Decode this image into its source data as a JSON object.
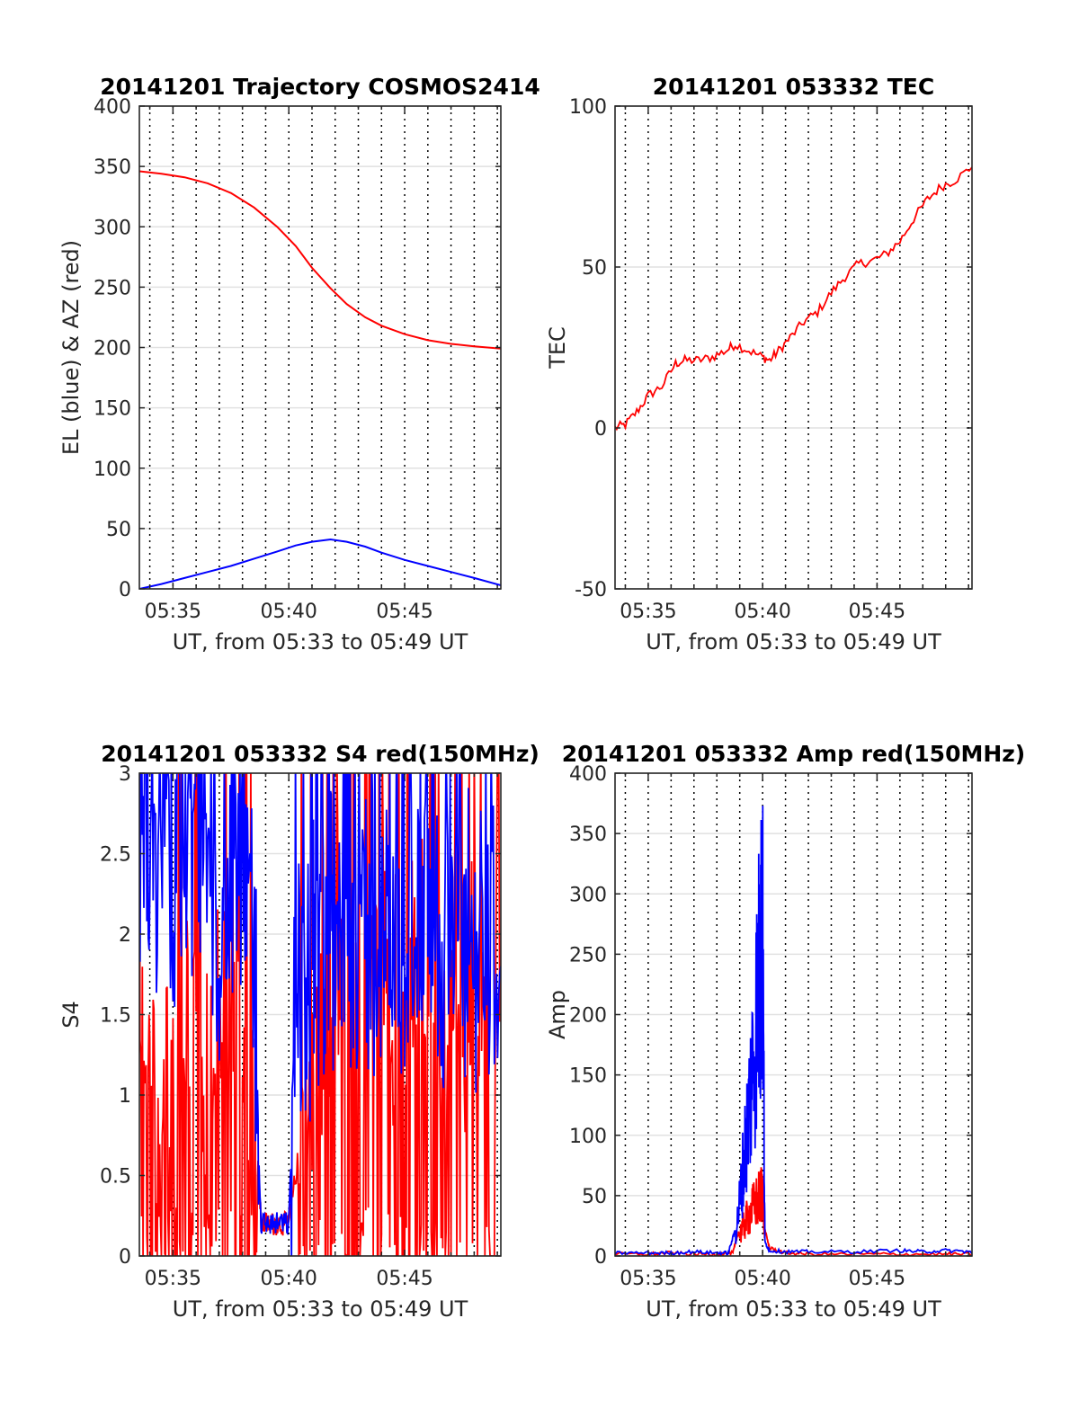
{
  "colors": {
    "red": "#ff0000",
    "blue": "#0000ff",
    "grid": "#e1e1e1",
    "axis": "#262626"
  },
  "chart_data": [
    {
      "type": "line",
      "title": "20141201 Trajectory COSMOS2414",
      "xlabel": "UT, from 05:33 to 05:49 UT",
      "ylabel": "EL (blue) & AZ (red)",
      "xlim": [
        33.55,
        49.15
      ],
      "ylim": [
        0,
        400
      ],
      "xtick_labels": [
        "05:35",
        "05:40",
        "05:45"
      ],
      "xticks": [
        35,
        40,
        45
      ],
      "yticks": [
        0,
        50,
        100,
        150,
        200,
        250,
        300,
        350,
        400
      ],
      "ytick_labels": [
        "0",
        "50",
        "100",
        "150",
        "200",
        "250",
        "300",
        "350",
        "400"
      ],
      "grid": true,
      "series": [
        {
          "color": "red",
          "x": [
            33.55,
            34.5,
            35.5,
            36.5,
            37.5,
            38.5,
            39.5,
            40.3,
            41.0,
            41.8,
            42.5,
            43.3,
            44.0,
            45.0,
            46.0,
            47.0,
            48.0,
            49.15
          ],
          "values": [
            346,
            344,
            341,
            336,
            328,
            316,
            300,
            284,
            266,
            249,
            236,
            225,
            218,
            211,
            206,
            203,
            201,
            199
          ]
        },
        {
          "color": "blue",
          "x": [
            33.55,
            34.5,
            35.5,
            36.5,
            37.5,
            38.5,
            39.5,
            40.3,
            41.0,
            41.8,
            42.5,
            43.3,
            44.0,
            45.0,
            46.0,
            47.0,
            48.0,
            49.15
          ],
          "values": [
            0,
            4,
            9,
            14,
            19,
            25,
            31,
            36,
            39,
            41,
            39,
            35,
            30,
            24,
            19,
            14,
            9,
            3
          ]
        }
      ]
    },
    {
      "type": "line",
      "title": "20141201 053332 TEC",
      "xlabel": "UT, from 05:33 to 05:49 UT",
      "ylabel": "TEC",
      "xlim": [
        33.55,
        49.15
      ],
      "ylim": [
        -50,
        100
      ],
      "xtick_labels": [
        "05:35",
        "05:40",
        "05:45"
      ],
      "xticks": [
        35,
        40,
        45
      ],
      "yticks": [
        -50,
        0,
        50,
        100
      ],
      "ytick_labels": [
        "-50",
        "0",
        "50",
        "100"
      ],
      "grid": true,
      "series": [
        {
          "color": "red",
          "x": [
            33.55,
            34.0,
            34.5,
            35.0,
            35.6,
            36.2,
            36.6,
            37.2,
            37.8,
            38.4,
            38.8,
            39.4,
            40.0,
            40.3,
            40.7,
            41.2,
            41.8,
            42.4,
            43.0,
            43.6,
            44.2,
            44.8,
            45.4,
            46.0,
            46.6,
            47.2,
            47.8,
            48.4,
            49.15
          ],
          "values": [
            0,
            1,
            5,
            10,
            13,
            20,
            21,
            21,
            22,
            24,
            26,
            24,
            22,
            21,
            24,
            28,
            33,
            36,
            42,
            47,
            51,
            52,
            54,
            58,
            65,
            71,
            75,
            77,
            81
          ]
        }
      ]
    },
    {
      "type": "line",
      "title": "20141201 053332 S4 red(150MHz)",
      "xlabel": "UT, from 05:33 to 05:49 UT",
      "ylabel": "S4",
      "xlim": [
        33.55,
        49.15
      ],
      "ylim": [
        0,
        3
      ],
      "xtick_labels": [
        "05:35",
        "05:40",
        "05:45"
      ],
      "xticks": [
        35,
        40,
        45
      ],
      "yticks": [
        0,
        0.5,
        1,
        1.5,
        2,
        2.5,
        3
      ],
      "ytick_labels": [
        "0",
        "0.5",
        "1",
        "1.5",
        "2",
        "2.5",
        "3"
      ],
      "grid": true,
      "series": [
        {
          "color": "red",
          "x": [
            33.55,
            34.0,
            34.5,
            35.0,
            35.5,
            36.0,
            36.5,
            37.0,
            37.5,
            38.0,
            38.5,
            38.8,
            39.2,
            39.6,
            40.0,
            40.4,
            40.8,
            41.2,
            41.6,
            42.0,
            42.5,
            43.0,
            43.5,
            44.0,
            44.5,
            45.0,
            45.5,
            46.0,
            46.5,
            47.0,
            47.5,
            48.0,
            48.5,
            49.15
          ],
          "values": [
            1.6,
            1.2,
            0.9,
            0.9,
            1.3,
            1.5,
            1.2,
            1.4,
            1.6,
            1.5,
            1.1,
            0.2,
            0.2,
            0.2,
            0.2,
            0.6,
            1.0,
            1.3,
            1.6,
            2.0,
            1.8,
            1.9,
            1.7,
            1.8,
            1.6,
            1.8,
            1.7,
            2.0,
            1.6,
            1.8,
            1.5,
            1.7,
            1.6,
            1.7
          ]
        },
        {
          "color": "blue",
          "x": [
            33.55,
            34.0,
            34.5,
            35.0,
            35.5,
            36.0,
            36.5,
            37.0,
            37.5,
            38.0,
            38.5,
            38.8,
            39.2,
            39.6,
            40.0,
            40.4,
            40.8,
            41.2,
            41.6,
            42.0,
            42.5,
            43.0,
            43.5,
            44.0,
            44.5,
            45.0,
            45.5,
            46.0,
            46.5,
            47.0,
            47.5,
            48.0,
            48.5,
            49.15
          ],
          "values": [
            2.6,
            2.4,
            2.3,
            2.2,
            2.4,
            2.5,
            2.3,
            2.0,
            2.2,
            2.4,
            1.6,
            0.2,
            0.2,
            0.2,
            0.2,
            1.7,
            1.6,
            1.6,
            1.8,
            1.9,
            2.0,
            1.9,
            1.8,
            1.9,
            1.8,
            1.9,
            2.0,
            2.1,
            1.8,
            1.9,
            1.8,
            1.7,
            1.9,
            1.8
          ]
        }
      ]
    },
    {
      "type": "line",
      "title": "20141201 053332 Amp red(150MHz)",
      "xlabel": "UT, from 05:33 to 05:49 UT",
      "ylabel": "Amp",
      "xlim": [
        33.55,
        49.15
      ],
      "ylim": [
        0,
        400
      ],
      "xtick_labels": [
        "05:35",
        "05:40",
        "05:45"
      ],
      "xticks": [
        35,
        40,
        45
      ],
      "yticks": [
        0,
        50,
        100,
        150,
        200,
        250,
        300,
        350,
        400
      ],
      "ytick_labels": [
        "0",
        "50",
        "100",
        "150",
        "200",
        "250",
        "300",
        "350",
        "400"
      ],
      "grid": true,
      "series": [
        {
          "color": "red",
          "x": [
            33.55,
            35.0,
            36.0,
            37.0,
            38.0,
            38.7,
            38.9,
            39.1,
            39.3,
            39.5,
            39.7,
            39.9,
            40.0,
            40.1,
            40.3,
            41.0,
            42.0,
            44.0,
            46.0,
            48.0,
            49.15
          ],
          "values": [
            0,
            0,
            1,
            0,
            0,
            1,
            15,
            30,
            40,
            50,
            58,
            65,
            78,
            20,
            5,
            1,
            0,
            0,
            0,
            0,
            0
          ]
        },
        {
          "color": "blue",
          "x": [
            33.55,
            35.0,
            36.0,
            37.0,
            38.0,
            38.5,
            38.8,
            39.0,
            39.2,
            39.4,
            39.6,
            39.8,
            39.9,
            40.0,
            40.1,
            40.3,
            41.0,
            42.0,
            44.0,
            46.0,
            47.0,
            48.0,
            49.15
          ],
          "values": [
            1,
            1,
            1,
            2,
            1,
            1,
            20,
            60,
            110,
            160,
            220,
            290,
            330,
            355,
            10,
            3,
            2,
            2,
            2,
            3,
            2,
            3,
            2
          ]
        }
      ]
    }
  ]
}
